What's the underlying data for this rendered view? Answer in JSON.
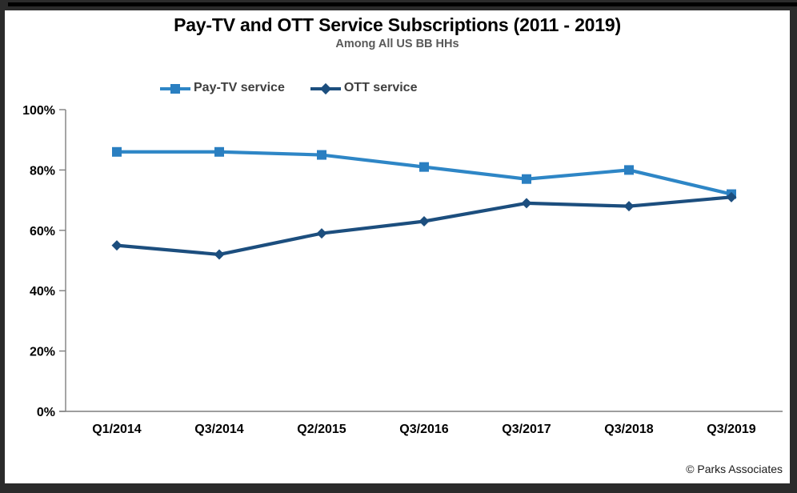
{
  "header": {
    "title": "Pay-TV and OTT Service Subscriptions (2011 - 2019)",
    "subtitle": "Among All US BB HHs"
  },
  "legend": {
    "items": [
      {
        "label": "Pay-TV service",
        "marker": "square",
        "color": "#2a7fc1",
        "line_color": "#2e86c6"
      },
      {
        "label": "OTT service",
        "marker": "diamond",
        "color": "#1c4e7e",
        "line_color": "#1c4e7e"
      }
    ]
  },
  "footer": {
    "copyright": "© Parks Associates"
  },
  "colors": {
    "axis": "#7f7f7f",
    "tick_label": "#000000",
    "background": "#ffffff",
    "frame": "#2b2b2b"
  },
  "chart_data": {
    "type": "line",
    "title": "Pay-TV and OTT Service Subscriptions (2011 - 2019)",
    "subtitle": "Among All US BB HHs",
    "categories": [
      "Q1/2014",
      "Q3/2014",
      "Q2/2015",
      "Q3/2016",
      "Q3/2017",
      "Q3/2018",
      "Q3/2019"
    ],
    "series": [
      {
        "name": "Pay-TV service",
        "marker": "square",
        "color": "#2a7fc1",
        "line_color": "#2e86c6",
        "values": [
          86,
          86,
          85,
          81,
          77,
          80,
          72
        ]
      },
      {
        "name": "OTT service",
        "marker": "diamond",
        "color": "#1c4e7e",
        "line_color": "#1c4e7e",
        "values": [
          55,
          52,
          59,
          63,
          69,
          68,
          71
        ]
      }
    ],
    "xlabel": "",
    "ylabel": "",
    "ylim": [
      0,
      100
    ],
    "y_ticks": [
      0,
      20,
      40,
      60,
      80,
      100
    ],
    "y_tick_labels": [
      "0%",
      "20%",
      "40%",
      "60%",
      "80%",
      "100%"
    ],
    "grid": false,
    "legend_position": "top-left",
    "units": "percent"
  }
}
